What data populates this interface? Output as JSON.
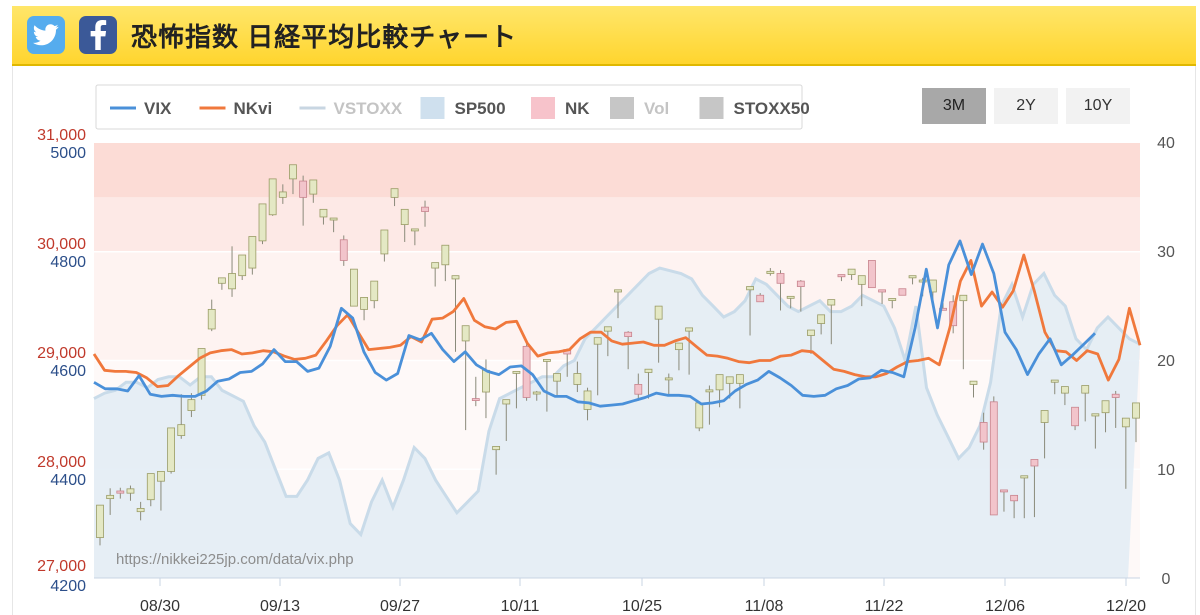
{
  "header": {
    "title": "恐怖指数 日経平均比較チャート",
    "icons": [
      "twitter-icon",
      "facebook-icon"
    ],
    "colors": {
      "bar": "#ffd52e",
      "twitter": "#55acee",
      "facebook": "#3b5998"
    }
  },
  "range_buttons": {
    "b3m": "3M",
    "b2y": "2Y",
    "b10y": "10Y",
    "active": "3M"
  },
  "chart_data": {
    "type": "line",
    "legend": {
      "placement": "top-left",
      "items": [
        {
          "key": "vix",
          "label": "VIX",
          "kind": "line",
          "color": "#4a90d9",
          "dim": false
        },
        {
          "key": "nkvi",
          "label": "NKvi",
          "kind": "line",
          "color": "#f0783c",
          "dim": false
        },
        {
          "key": "vstoxx",
          "label": "VSTOXX",
          "kind": "line",
          "color": "#c8d6e2",
          "dim": true
        },
        {
          "key": "sp500",
          "label": "SP500",
          "kind": "box",
          "color": "#cfe0ee",
          "dim": false
        },
        {
          "key": "nk",
          "label": "NK",
          "kind": "box",
          "color": "#f7c3cb",
          "dim": false
        },
        {
          "key": "vol",
          "label": "Vol",
          "kind": "box",
          "color": "#c6c6c6",
          "dim": true
        },
        {
          "key": "stoxx50",
          "label": "STOXX50",
          "kind": "box",
          "color": "#c6c6c6",
          "dim": false
        }
      ]
    },
    "x_labels": [
      "08/30",
      "09/13",
      "09/27",
      "10/11",
      "10/25",
      "11/08",
      "11/22",
      "12/06",
      "12/20"
    ],
    "axes": {
      "nk": {
        "ticks": [
          "27,000",
          "28,000",
          "29,000",
          "30,000",
          "31,000"
        ],
        "range": [
          27000,
          31000
        ],
        "color": "#c0392b"
      },
      "sp500": {
        "ticks": [
          "4200",
          "4400",
          "4600",
          "4800",
          "5000"
        ],
        "range": [
          4200,
          5000
        ],
        "color": "#2c4f8a"
      },
      "vix": {
        "ticks": [
          "0",
          "10",
          "20",
          "30",
          "40"
        ],
        "range": [
          0,
          40
        ],
        "color": "#555555"
      }
    },
    "bands": [
      {
        "from": 35,
        "to": 40,
        "color": "#fcdcd6"
      },
      {
        "from": 30,
        "to": 35,
        "color": "#fde9e6"
      },
      {
        "from": 20,
        "to": 30,
        "color": "#fef3f1"
      },
      {
        "from": 0,
        "to": 20,
        "color": "#fef9f8"
      }
    ],
    "watermark": "https://nikkei225jp.com/data/vix.php",
    "series": [
      {
        "name": "VIX",
        "color": "#4a90d9",
        "values": [
          18.0,
          17.4,
          17.4,
          17.2,
          18.6,
          16.9,
          16.7,
          16.8,
          16.7,
          16.7,
          17.2,
          18.1,
          18.3,
          18.9,
          19.0,
          19.7,
          21.0,
          19.9,
          19.9,
          19.0,
          19.3,
          21.3,
          24.8,
          23.9,
          20.8,
          18.9,
          18.2,
          18.8,
          22.3,
          21.9,
          22.5,
          21.0,
          19.9,
          20.8,
          19.6,
          19.0,
          18.7,
          19.4,
          19.5,
          18.7,
          17.2,
          16.7,
          16.7,
          16.2,
          16.1,
          15.8,
          15.9,
          16.0,
          16.3,
          16.6,
          17.0,
          16.8,
          16.8,
          16.7,
          16.0,
          16.1,
          16.3,
          17.2,
          17.8,
          18.2,
          19.0,
          18.4,
          17.7,
          16.8,
          16.7,
          16.8,
          17.4,
          17.7,
          18.3,
          18.4,
          19.1,
          18.9,
          18.5,
          23.0,
          28.4,
          23.0,
          28.8,
          31.0,
          27.9,
          30.7,
          28.0,
          22.6,
          21.0,
          18.7,
          20.6,
          22.0,
          19.6,
          20.5,
          21.5,
          22.5
        ]
      },
      {
        "name": "NKvi",
        "color": "#f0783c",
        "values": [
          20.6,
          19.1,
          19.0,
          19.0,
          18.9,
          18.4,
          17.6,
          17.7,
          18.6,
          19.4,
          20.2,
          20.7,
          20.9,
          21.0,
          20.6,
          20.7,
          20.9,
          20.8,
          20.4,
          20.1,
          20.2,
          20.5,
          21.8,
          23.2,
          24.2,
          22.6,
          21.0,
          21.1,
          21.2,
          21.4,
          22.2,
          21.7,
          23.8,
          23.9,
          24.5,
          25.7,
          23.7,
          23.1,
          22.9,
          23.5,
          23.6,
          21.6,
          20.4,
          20.7,
          20.8,
          21.0,
          22.0,
          22.6,
          22.6,
          21.8,
          21.5,
          21.6,
          21.7,
          21.4,
          21.4,
          21.8,
          22.1,
          21.3,
          20.5,
          20.4,
          20.2,
          19.9,
          19.8,
          20.0,
          20.0,
          20.4,
          20.5,
          20.9,
          20.8,
          20.0,
          19.2,
          19.0,
          18.7,
          18.5,
          18.5,
          18.8,
          19.4,
          19.9,
          20.0,
          20.2,
          19.6,
          23.0,
          27.3,
          29.2,
          25.0,
          26.3,
          24.9,
          26.4,
          29.7,
          26.4,
          22.6,
          20.9,
          20.8,
          20.0,
          20.9,
          20.6,
          18.2,
          20.1,
          24.8,
          21.4
        ]
      },
      {
        "name": "SP500",
        "color": "#cfe0ee",
        "values": [
          4530,
          4540,
          4545,
          4560,
          4560,
          4550,
          4565,
          4570,
          4570,
          4555,
          4570,
          4570,
          4545,
          4535,
          4525,
          4480,
          4450,
          4400,
          4350,
          4350,
          4380,
          4420,
          4430,
          4380,
          4300,
          4280,
          4340,
          4380,
          4330,
          4380,
          4440,
          4420,
          4380,
          4350,
          4320,
          4340,
          4360,
          4470,
          4530,
          4540,
          4550,
          4560,
          4570,
          4570,
          4590,
          4600,
          4640,
          4660,
          4680,
          4700,
          4720,
          4740,
          4760,
          4770,
          4765,
          4760,
          4750,
          4720,
          4700,
          4680,
          4690,
          4710,
          4750,
          4740,
          4720,
          4700,
          4690,
          4700,
          4710,
          4690,
          4690,
          4700,
          4720,
          4710,
          4700,
          4660,
          4600,
          4700,
          4550,
          4500,
          4460,
          4420,
          4440,
          4480,
          4560,
          4700,
          4740,
          4680,
          4740,
          4760,
          4720,
          4700,
          4640,
          4620,
          4660,
          4680,
          4660,
          4640,
          4630
        ]
      },
      {
        "name": "NK",
        "color": "#f7c3cb",
        "candles": [
          [
            27372,
            27300,
            27470,
            27670
          ],
          [
            27730,
            27580,
            27825,
            27760
          ],
          [
            27800,
            27730,
            27830,
            27780
          ],
          [
            27780,
            27710,
            27850,
            27820
          ],
          [
            27610,
            27530,
            27700,
            27640
          ],
          [
            27720,
            27660,
            27720,
            27960
          ],
          [
            27890,
            27620,
            27980,
            27980
          ],
          [
            27980,
            27960,
            28260,
            28380
          ],
          [
            28310,
            28280,
            28690,
            28410
          ],
          [
            28540,
            28480,
            28700,
            28640
          ],
          [
            28680,
            28640,
            29090,
            29110
          ],
          [
            29290,
            29270,
            29560,
            29470
          ],
          [
            29710,
            29650,
            29710,
            29760
          ],
          [
            29659,
            29585,
            30050,
            29800
          ],
          [
            29780,
            29740,
            29780,
            29970
          ],
          [
            29850,
            29790,
            29950,
            30140
          ],
          [
            30100,
            30070,
            30330,
            30440
          ],
          [
            30340,
            30330,
            30420,
            30670
          ],
          [
            30500,
            30440,
            30620,
            30550
          ],
          [
            30670,
            30530,
            30750,
            30800
          ],
          [
            30650,
            30240,
            30700,
            30500
          ],
          [
            30530,
            30450,
            30550,
            30660
          ],
          [
            30320,
            30340,
            30250,
            30390
          ],
          [
            30310,
            30180,
            30270,
            30310
          ],
          [
            30110,
            29870,
            30150,
            29920
          ],
          [
            29500,
            29500,
            29670,
            29840
          ],
          [
            29470,
            29370,
            29480,
            29580
          ],
          [
            29550,
            29480,
            29650,
            29730
          ],
          [
            29980,
            29910,
            30010,
            30200
          ],
          [
            30500,
            30420,
            30580,
            30580
          ],
          [
            30250,
            30090,
            30270,
            30390
          ],
          [
            30210,
            30060,
            30200,
            30210
          ],
          [
            30410,
            30230,
            30470,
            30370
          ],
          [
            29850,
            29680,
            29870,
            29900
          ],
          [
            29880,
            29730,
            29790,
            30060
          ],
          [
            29750,
            29080,
            29730,
            29780
          ],
          [
            29180,
            28360,
            29170,
            29320
          ],
          [
            28650,
            28580,
            28850,
            28640
          ],
          [
            28710,
            28470,
            29010,
            28910
          ],
          [
            28180,
            27950,
            28190,
            28210
          ],
          [
            28600,
            28260,
            28510,
            28640
          ],
          [
            28900,
            28560,
            28890,
            28900
          ],
          [
            29130,
            28630,
            29150,
            28660
          ],
          [
            28700,
            28630,
            28720,
            28710
          ],
          [
            29000,
            28530,
            28770,
            29010
          ],
          [
            28810,
            28680,
            28830,
            28880
          ],
          [
            29100,
            28850,
            29110,
            29060
          ],
          [
            28780,
            28710,
            28990,
            28880
          ],
          [
            28550,
            28450,
            28750,
            28720
          ],
          [
            29150,
            28680,
            29150,
            29210
          ],
          [
            29270,
            29040,
            29260,
            29310
          ],
          [
            29630,
            29390,
            29630,
            29650
          ],
          [
            29260,
            28920,
            29270,
            29220
          ],
          [
            28780,
            28630,
            28880,
            28690
          ],
          [
            28890,
            28650,
            28880,
            28920
          ],
          [
            29380,
            28980,
            29370,
            29500
          ],
          [
            28830,
            28670,
            28880,
            28840
          ],
          [
            29100,
            28910,
            29070,
            29160
          ],
          [
            29270,
            28870,
            29220,
            29300
          ],
          [
            28380,
            28350,
            28420,
            28610
          ],
          [
            28720,
            28410,
            28770,
            28730
          ],
          [
            28730,
            28570,
            28760,
            28870
          ],
          [
            28790,
            28650,
            28690,
            28850
          ],
          [
            28790,
            28560,
            28790,
            28870
          ],
          [
            29650,
            29230,
            29650,
            29680
          ],
          [
            29600,
            29580,
            29620,
            29540
          ],
          [
            29800,
            29780,
            29850,
            29820
          ],
          [
            29800,
            29460,
            29830,
            29710
          ],
          [
            29590,
            29480,
            29590,
            29590
          ],
          [
            29730,
            29450,
            29740,
            29680
          ],
          [
            29230,
            29060,
            29230,
            29280
          ],
          [
            29340,
            29240,
            29320,
            29420
          ],
          [
            29510,
            29150,
            29500,
            29560
          ],
          [
            29790,
            29770,
            29730,
            29770
          ],
          [
            29790,
            29740,
            29820,
            29840
          ],
          [
            29700,
            29500,
            29700,
            29780
          ],
          [
            29920,
            29700,
            29920,
            29670
          ],
          [
            29650,
            29520,
            29650,
            29630
          ],
          [
            29570,
            29480,
            29520,
            29570
          ],
          [
            29660,
            29620,
            29640,
            29600
          ],
          [
            29760,
            29700,
            29780,
            29780
          ],
          [
            29740,
            29590,
            29760,
            29740
          ],
          [
            29630,
            29490,
            29600,
            29740
          ],
          [
            29480,
            29460,
            29530,
            29470
          ],
          [
            29540,
            29250,
            29600,
            29320
          ],
          [
            29550,
            28920,
            29510,
            29600
          ],
          [
            28780,
            28660,
            28760,
            28810
          ],
          [
            28430,
            28180,
            28520,
            28250
          ],
          [
            28620,
            27750,
            28670,
            27580
          ],
          [
            27810,
            27610,
            27810,
            27800
          ],
          [
            27760,
            27550,
            27640,
            27710
          ],
          [
            27920,
            27550,
            27780,
            27940
          ],
          [
            28090,
            27560,
            27840,
            28030
          ],
          [
            28430,
            28100,
            28410,
            28540
          ],
          [
            28800,
            28730,
            28690,
            28820
          ],
          [
            28700,
            28590,
            28760,
            28760
          ],
          [
            28570,
            28360,
            28550,
            28400
          ],
          [
            28700,
            28440,
            28590,
            28770
          ],
          [
            28490,
            28190,
            28460,
            28510
          ],
          [
            28520,
            28340,
            28430,
            28630
          ],
          [
            28690,
            28380,
            28720,
            28660
          ],
          [
            28390,
            27820,
            28360,
            28470
          ],
          [
            28470,
            28250,
            28480,
            28610
          ]
        ]
      }
    ]
  }
}
